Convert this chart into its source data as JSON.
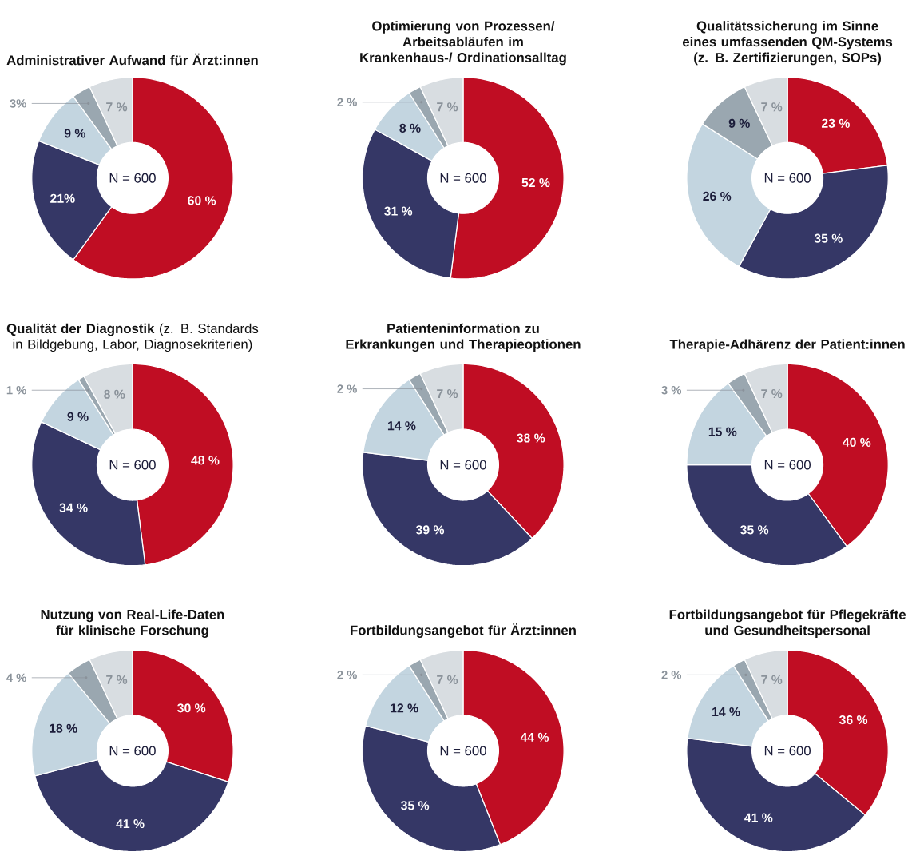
{
  "chart_data": [
    {
      "type": "donut",
      "title": "Administrativer Aufwand für Ärzt:innen",
      "categories": [
        null,
        null,
        null,
        null,
        null
      ],
      "values": [
        60,
        21,
        9,
        3,
        7
      ],
      "colors": [
        "#c00d23",
        "#353766",
        "#c3d5e0",
        "#9aa7b0",
        "#d8dde1"
      ],
      "value_labels": [
        "60 %",
        "21%",
        "9 %",
        "3%",
        "7 %"
      ],
      "annotations": [
        "N = 600"
      ]
    },
    {
      "type": "donut",
      "title": "Optimierung von Prozessen/ Arbeitsabläufen im Krankenhaus-/ Ordinationsalltag",
      "categories": [
        null,
        null,
        null,
        null,
        null
      ],
      "values": [
        52,
        31,
        8,
        2,
        7
      ],
      "colors": [
        "#c00d23",
        "#353766",
        "#c3d5e0",
        "#9aa7b0",
        "#d8dde1"
      ],
      "value_labels": [
        "52 %",
        "31 %",
        "8 %",
        "2 %",
        "7 %"
      ],
      "annotations": [
        "N = 600"
      ]
    },
    {
      "type": "donut",
      "title": "Qualitätssicherung im Sinne eines umfassenden QM-Systems (z. B. Zertifizierungen, SOPs)",
      "categories": [
        null,
        null,
        null,
        null,
        null
      ],
      "values": [
        23,
        35,
        26,
        9,
        7
      ],
      "colors": [
        "#c00d23",
        "#353766",
        "#c3d5e0",
        "#9aa7b0",
        "#d8dde1"
      ],
      "value_labels": [
        "23 %",
        "35 %",
        "26 %",
        "9 %",
        "7 %"
      ],
      "annotations": [
        "N = 600"
      ]
    },
    {
      "type": "donut",
      "title": "Qualität der Diagnostik",
      "subtitle": "(z. B. Standards in Bildgebung, Labor, Diagnosekriterien)",
      "categories": [
        null,
        null,
        null,
        null,
        null
      ],
      "values": [
        48,
        34,
        9,
        1,
        8
      ],
      "colors": [
        "#c00d23",
        "#353766",
        "#c3d5e0",
        "#9aa7b0",
        "#d8dde1"
      ],
      "value_labels": [
        "48 %",
        "34 %",
        "9 %",
        "1 %",
        "8 %"
      ],
      "annotations": [
        "N = 600"
      ]
    },
    {
      "type": "donut",
      "title": "Patienteninformation zu Erkrankungen und Therapieoptionen",
      "categories": [
        null,
        null,
        null,
        null,
        null
      ],
      "values": [
        38,
        39,
        14,
        2,
        7
      ],
      "colors": [
        "#c00d23",
        "#353766",
        "#c3d5e0",
        "#9aa7b0",
        "#d8dde1"
      ],
      "value_labels": [
        "38 %",
        "39 %",
        "14 %",
        "2 %",
        "7 %"
      ],
      "annotations": [
        "N = 600"
      ]
    },
    {
      "type": "donut",
      "title": "Therapie-Adhärenz der Patient:innen",
      "categories": [
        null,
        null,
        null,
        null,
        null
      ],
      "values": [
        40,
        35,
        15,
        3,
        7
      ],
      "colors": [
        "#c00d23",
        "#353766",
        "#c3d5e0",
        "#9aa7b0",
        "#d8dde1"
      ],
      "value_labels": [
        "40 %",
        "35 %",
        "15 %",
        "3 %",
        "7 %"
      ],
      "annotations": [
        "N = 600"
      ]
    },
    {
      "type": "donut",
      "title": "Nutzung von Real-Life-Daten für klinische Forschung",
      "categories": [
        null,
        null,
        null,
        null,
        null
      ],
      "values": [
        30,
        41,
        18,
        4,
        7
      ],
      "colors": [
        "#c00d23",
        "#353766",
        "#c3d5e0",
        "#9aa7b0",
        "#d8dde1"
      ],
      "value_labels": [
        "30 %",
        "41 %",
        "18 %",
        "4 %",
        "7 %"
      ],
      "annotations": [
        "N = 600"
      ]
    },
    {
      "type": "donut",
      "title": "Fortbildungsangebot für Ärzt:innen",
      "categories": [
        null,
        null,
        null,
        null,
        null
      ],
      "values": [
        44,
        35,
        12,
        2,
        7
      ],
      "colors": [
        "#c00d23",
        "#353766",
        "#c3d5e0",
        "#9aa7b0",
        "#d8dde1"
      ],
      "value_labels": [
        "44 %",
        "35 %",
        "12 %",
        "2 %",
        "7 %"
      ],
      "annotations": [
        "N = 600"
      ]
    },
    {
      "type": "donut",
      "title": "Fortbildungsangebot für Pflegekräfte und Gesundheitspersonal",
      "categories": [
        null,
        null,
        null,
        null,
        null
      ],
      "values": [
        36,
        41,
        14,
        2,
        7
      ],
      "colors": [
        "#c00d23",
        "#353766",
        "#c3d5e0",
        "#9aa7b0",
        "#d8dde1"
      ],
      "value_labels": [
        "36 %",
        "41 %",
        "14 %",
        "2 %",
        "7 %"
      ],
      "annotations": [
        "N = 600"
      ]
    }
  ]
}
